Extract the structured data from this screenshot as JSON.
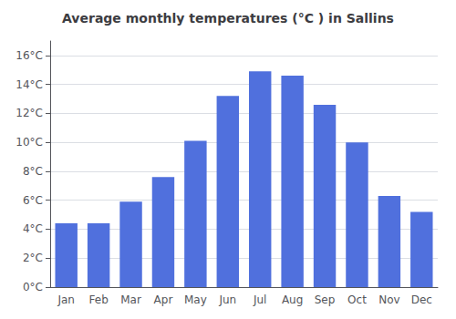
{
  "chart_data": {
    "type": "bar",
    "title": "Average monthly temperatures (°C ) in Sallins",
    "categories": [
      "Jan",
      "Feb",
      "Mar",
      "Apr",
      "May",
      "Jun",
      "Jul",
      "Aug",
      "Sep",
      "Oct",
      "Nov",
      "Dec"
    ],
    "values": [
      4.4,
      4.4,
      5.9,
      7.6,
      10.1,
      13.2,
      14.9,
      14.6,
      12.6,
      10.0,
      6.3,
      5.2
    ],
    "ylim": [
      0,
      17
    ],
    "yticks": [
      {
        "value": 0,
        "label": "0°C"
      },
      {
        "value": 2,
        "label": "2°C"
      },
      {
        "value": 4,
        "label": "4°C"
      },
      {
        "value": 6,
        "label": "6°C"
      },
      {
        "value": 8,
        "label": "8°C"
      },
      {
        "value": 10,
        "label": "10°C"
      },
      {
        "value": 12,
        "label": "12°C"
      },
      {
        "value": 14,
        "label": "14°C"
      },
      {
        "value": 16,
        "label": "16°C"
      }
    ],
    "grid": true
  }
}
